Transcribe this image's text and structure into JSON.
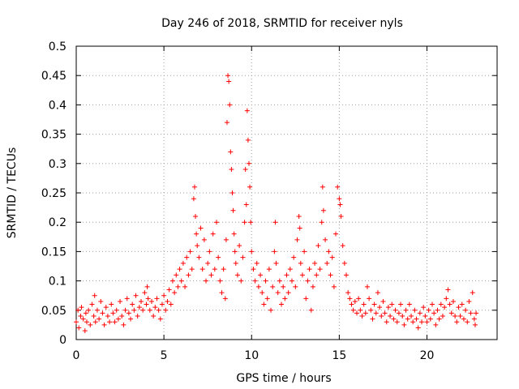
{
  "chart_data": {
    "type": "scatter",
    "title": "Day 246 of 2018, SRMTID for receiver nyls",
    "xlabel": "GPS time / hours",
    "ylabel": "SRMTID / TECUs",
    "xlim": [
      0,
      24
    ],
    "ylim": [
      0,
      0.5
    ],
    "x_ticks": [
      0,
      5,
      10,
      15,
      20
    ],
    "x_tick_labels": [
      "0",
      "5",
      "10",
      "15",
      "20"
    ],
    "y_ticks": [
      0,
      0.05,
      0.1,
      0.15,
      0.2,
      0.25,
      0.3,
      0.35,
      0.4,
      0.45,
      0.5
    ],
    "y_tick_labels": [
      "0",
      "0.05",
      "0.1",
      "0.15",
      "0.2",
      "0.25",
      "0.3",
      "0.35",
      "0.4",
      "0.45",
      "0.5"
    ],
    "grid": true,
    "marker": "+",
    "color": "#ff0000",
    "series": [
      {
        "name": "SRMTID",
        "points": [
          [
            0.0,
            0.03
          ],
          [
            0.1,
            0.05
          ],
          [
            0.15,
            0.02
          ],
          [
            0.25,
            0.04
          ],
          [
            0.3,
            0.055
          ],
          [
            0.4,
            0.035
          ],
          [
            0.5,
            0.015
          ],
          [
            0.55,
            0.045
          ],
          [
            0.6,
            0.03
          ],
          [
            0.7,
            0.05
          ],
          [
            0.8,
            0.025
          ],
          [
            0.9,
            0.06
          ],
          [
            1.0,
            0.04
          ],
          [
            1.05,
            0.075
          ],
          [
            1.1,
            0.03
          ],
          [
            1.2,
            0.05
          ],
          [
            1.3,
            0.035
          ],
          [
            1.4,
            0.065
          ],
          [
            1.5,
            0.045
          ],
          [
            1.6,
            0.025
          ],
          [
            1.7,
            0.055
          ],
          [
            1.8,
            0.04
          ],
          [
            1.9,
            0.03
          ],
          [
            2.0,
            0.06
          ],
          [
            2.1,
            0.045
          ],
          [
            2.2,
            0.03
          ],
          [
            2.3,
            0.05
          ],
          [
            2.4,
            0.035
          ],
          [
            2.5,
            0.065
          ],
          [
            2.6,
            0.04
          ],
          [
            2.7,
            0.025
          ],
          [
            2.8,
            0.05
          ],
          [
            2.9,
            0.07
          ],
          [
            3.0,
            0.045
          ],
          [
            3.1,
            0.035
          ],
          [
            3.2,
            0.06
          ],
          [
            3.3,
            0.05
          ],
          [
            3.4,
            0.075
          ],
          [
            3.5,
            0.04
          ],
          [
            3.6,
            0.055
          ],
          [
            3.7,
            0.065
          ],
          [
            3.8,
            0.05
          ],
          [
            3.9,
            0.08
          ],
          [
            4.0,
            0.06
          ],
          [
            4.05,
            0.09
          ],
          [
            4.1,
            0.07
          ],
          [
            4.2,
            0.05
          ],
          [
            4.3,
            0.065
          ],
          [
            4.4,
            0.04
          ],
          [
            4.5,
            0.055
          ],
          [
            4.6,
            0.07
          ],
          [
            4.7,
            0.05
          ],
          [
            4.8,
            0.035
          ],
          [
            4.9,
            0.06
          ],
          [
            5.0,
            0.075
          ],
          [
            5.1,
            0.05
          ],
          [
            5.2,
            0.065
          ],
          [
            5.3,
            0.085
          ],
          [
            5.4,
            0.06
          ],
          [
            5.5,
            0.1
          ],
          [
            5.6,
            0.08
          ],
          [
            5.7,
            0.11
          ],
          [
            5.8,
            0.09
          ],
          [
            5.9,
            0.12
          ],
          [
            6.0,
            0.1
          ],
          [
            6.1,
            0.13
          ],
          [
            6.2,
            0.09
          ],
          [
            6.3,
            0.14
          ],
          [
            6.4,
            0.11
          ],
          [
            6.5,
            0.15
          ],
          [
            6.6,
            0.12
          ],
          [
            6.7,
            0.24
          ],
          [
            6.75,
            0.26
          ],
          [
            6.8,
            0.21
          ],
          [
            6.85,
            0.18
          ],
          [
            6.9,
            0.16
          ],
          [
            7.0,
            0.14
          ],
          [
            7.1,
            0.19
          ],
          [
            7.2,
            0.12
          ],
          [
            7.3,
            0.17
          ],
          [
            7.4,
            0.1
          ],
          [
            7.5,
            0.13
          ],
          [
            7.6,
            0.15
          ],
          [
            7.7,
            0.11
          ],
          [
            7.8,
            0.18
          ],
          [
            7.9,
            0.12
          ],
          [
            8.0,
            0.2
          ],
          [
            8.1,
            0.14
          ],
          [
            8.2,
            0.1
          ],
          [
            8.3,
            0.08
          ],
          [
            8.4,
            0.12
          ],
          [
            8.5,
            0.07
          ],
          [
            8.55,
            0.17
          ],
          [
            8.6,
            0.37
          ],
          [
            8.65,
            0.45
          ],
          [
            8.7,
            0.44
          ],
          [
            8.75,
            0.4
          ],
          [
            8.8,
            0.32
          ],
          [
            8.85,
            0.29
          ],
          [
            8.9,
            0.25
          ],
          [
            8.95,
            0.22
          ],
          [
            9.0,
            0.18
          ],
          [
            9.05,
            0.15
          ],
          [
            9.1,
            0.13
          ],
          [
            9.2,
            0.11
          ],
          [
            9.3,
            0.16
          ],
          [
            9.4,
            0.1
          ],
          [
            9.5,
            0.14
          ],
          [
            9.6,
            0.2
          ],
          [
            9.65,
            0.29
          ],
          [
            9.7,
            0.23
          ],
          [
            9.75,
            0.39
          ],
          [
            9.8,
            0.34
          ],
          [
            9.85,
            0.3
          ],
          [
            9.9,
            0.26
          ],
          [
            9.95,
            0.2
          ],
          [
            10.0,
            0.15
          ],
          [
            10.1,
            0.12
          ],
          [
            10.2,
            0.1
          ],
          [
            10.3,
            0.13
          ],
          [
            10.4,
            0.09
          ],
          [
            10.5,
            0.11
          ],
          [
            10.6,
            0.08
          ],
          [
            10.7,
            0.06
          ],
          [
            10.8,
            0.1
          ],
          [
            10.9,
            0.07
          ],
          [
            11.0,
            0.12
          ],
          [
            11.1,
            0.05
          ],
          [
            11.2,
            0.09
          ],
          [
            11.3,
            0.15
          ],
          [
            11.35,
            0.2
          ],
          [
            11.4,
            0.13
          ],
          [
            11.5,
            0.08
          ],
          [
            11.6,
            0.1
          ],
          [
            11.7,
            0.06
          ],
          [
            11.8,
            0.09
          ],
          [
            11.9,
            0.07
          ],
          [
            12.0,
            0.11
          ],
          [
            12.1,
            0.08
          ],
          [
            12.2,
            0.12
          ],
          [
            12.3,
            0.1
          ],
          [
            12.4,
            0.14
          ],
          [
            12.5,
            0.09
          ],
          [
            12.6,
            0.17
          ],
          [
            12.7,
            0.21
          ],
          [
            12.75,
            0.19
          ],
          [
            12.8,
            0.13
          ],
          [
            12.9,
            0.11
          ],
          [
            13.0,
            0.15
          ],
          [
            13.1,
            0.07
          ],
          [
            13.2,
            0.1
          ],
          [
            13.3,
            0.12
          ],
          [
            13.4,
            0.05
          ],
          [
            13.5,
            0.09
          ],
          [
            13.6,
            0.13
          ],
          [
            13.7,
            0.11
          ],
          [
            13.8,
            0.16
          ],
          [
            13.9,
            0.12
          ],
          [
            14.0,
            0.2
          ],
          [
            14.05,
            0.26
          ],
          [
            14.1,
            0.22
          ],
          [
            14.2,
            0.17
          ],
          [
            14.3,
            0.13
          ],
          [
            14.4,
            0.15
          ],
          [
            14.5,
            0.11
          ],
          [
            14.6,
            0.14
          ],
          [
            14.7,
            0.09
          ],
          [
            14.8,
            0.18
          ],
          [
            14.9,
            0.26
          ],
          [
            15.0,
            0.24
          ],
          [
            15.05,
            0.23
          ],
          [
            15.1,
            0.21
          ],
          [
            15.2,
            0.16
          ],
          [
            15.3,
            0.13
          ],
          [
            15.4,
            0.11
          ],
          [
            15.5,
            0.08
          ],
          [
            15.6,
            0.07
          ],
          [
            15.7,
            0.06
          ],
          [
            15.8,
            0.05
          ],
          [
            15.9,
            0.065
          ],
          [
            16.0,
            0.045
          ],
          [
            16.1,
            0.07
          ],
          [
            16.2,
            0.05
          ],
          [
            16.3,
            0.04
          ],
          [
            16.4,
            0.06
          ],
          [
            16.5,
            0.045
          ],
          [
            16.6,
            0.09
          ],
          [
            16.7,
            0.07
          ],
          [
            16.8,
            0.05
          ],
          [
            16.9,
            0.035
          ],
          [
            17.0,
            0.06
          ],
          [
            17.1,
            0.045
          ],
          [
            17.2,
            0.08
          ],
          [
            17.3,
            0.055
          ],
          [
            17.4,
            0.04
          ],
          [
            17.5,
            0.065
          ],
          [
            17.6,
            0.045
          ],
          [
            17.7,
            0.03
          ],
          [
            17.8,
            0.055
          ],
          [
            17.9,
            0.04
          ],
          [
            18.0,
            0.06
          ],
          [
            18.1,
            0.035
          ],
          [
            18.2,
            0.05
          ],
          [
            18.3,
            0.03
          ],
          [
            18.4,
            0.045
          ],
          [
            18.5,
            0.06
          ],
          [
            18.6,
            0.04
          ],
          [
            18.7,
            0.025
          ],
          [
            18.8,
            0.05
          ],
          [
            18.9,
            0.035
          ],
          [
            19.0,
            0.06
          ],
          [
            19.1,
            0.04
          ],
          [
            19.2,
            0.03
          ],
          [
            19.3,
            0.05
          ],
          [
            19.4,
            0.035
          ],
          [
            19.5,
            0.02
          ],
          [
            19.6,
            0.045
          ],
          [
            19.7,
            0.03
          ],
          [
            19.8,
            0.055
          ],
          [
            19.9,
            0.04
          ],
          [
            20.0,
            0.03
          ],
          [
            20.1,
            0.05
          ],
          [
            20.2,
            0.035
          ],
          [
            20.3,
            0.06
          ],
          [
            20.4,
            0.045
          ],
          [
            20.5,
            0.025
          ],
          [
            20.6,
            0.05
          ],
          [
            20.7,
            0.035
          ],
          [
            20.8,
            0.06
          ],
          [
            20.9,
            0.04
          ],
          [
            21.0,
            0.055
          ],
          [
            21.1,
            0.07
          ],
          [
            21.2,
            0.085
          ],
          [
            21.3,
            0.06
          ],
          [
            21.4,
            0.045
          ],
          [
            21.5,
            0.065
          ],
          [
            21.6,
            0.04
          ],
          [
            21.7,
            0.03
          ],
          [
            21.8,
            0.055
          ],
          [
            21.9,
            0.04
          ],
          [
            22.0,
            0.06
          ],
          [
            22.1,
            0.035
          ],
          [
            22.2,
            0.05
          ],
          [
            22.3,
            0.03
          ],
          [
            22.4,
            0.065
          ],
          [
            22.5,
            0.045
          ],
          [
            22.6,
            0.08
          ],
          [
            22.7,
            0.035
          ],
          [
            22.75,
            0.025
          ],
          [
            22.8,
            0.045
          ]
        ]
      }
    ]
  }
}
